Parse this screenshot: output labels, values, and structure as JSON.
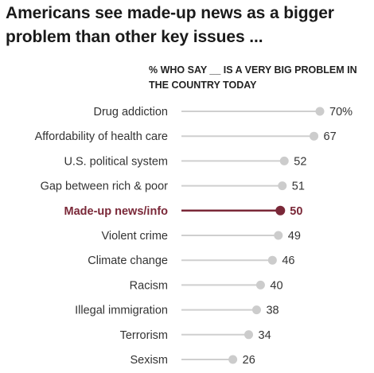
{
  "title": "Americans see made-up news as a bigger problem than other key issues ...",
  "subtitle": "% who say __ is a very big problem in the country today",
  "colors": {
    "line": "#cfcfcf",
    "dot": "#cccccc",
    "highlight": "#7a2838"
  },
  "chart_data": {
    "type": "dot",
    "title": "Americans see made-up news as a bigger problem than other key issues ...",
    "subtitle": "% who say __ is a very big problem in the country today",
    "xlim": [
      0,
      70
    ],
    "grid": false,
    "highlight": "Made-up news/info",
    "categories": [
      "Drug addiction",
      "Affordability of health care",
      "U.S. political system",
      "Gap between rich & poor",
      "Made-up news/info",
      "Violent crime",
      "Climate change",
      "Racism",
      "Illegal immigration",
      "Terrorism",
      "Sexism"
    ],
    "values": [
      70,
      67,
      52,
      51,
      50,
      49,
      46,
      40,
      38,
      34,
      26
    ],
    "value_labels": [
      "70%",
      "67",
      "52",
      "51",
      "50",
      "49",
      "46",
      "40",
      "38",
      "34",
      "26"
    ]
  }
}
